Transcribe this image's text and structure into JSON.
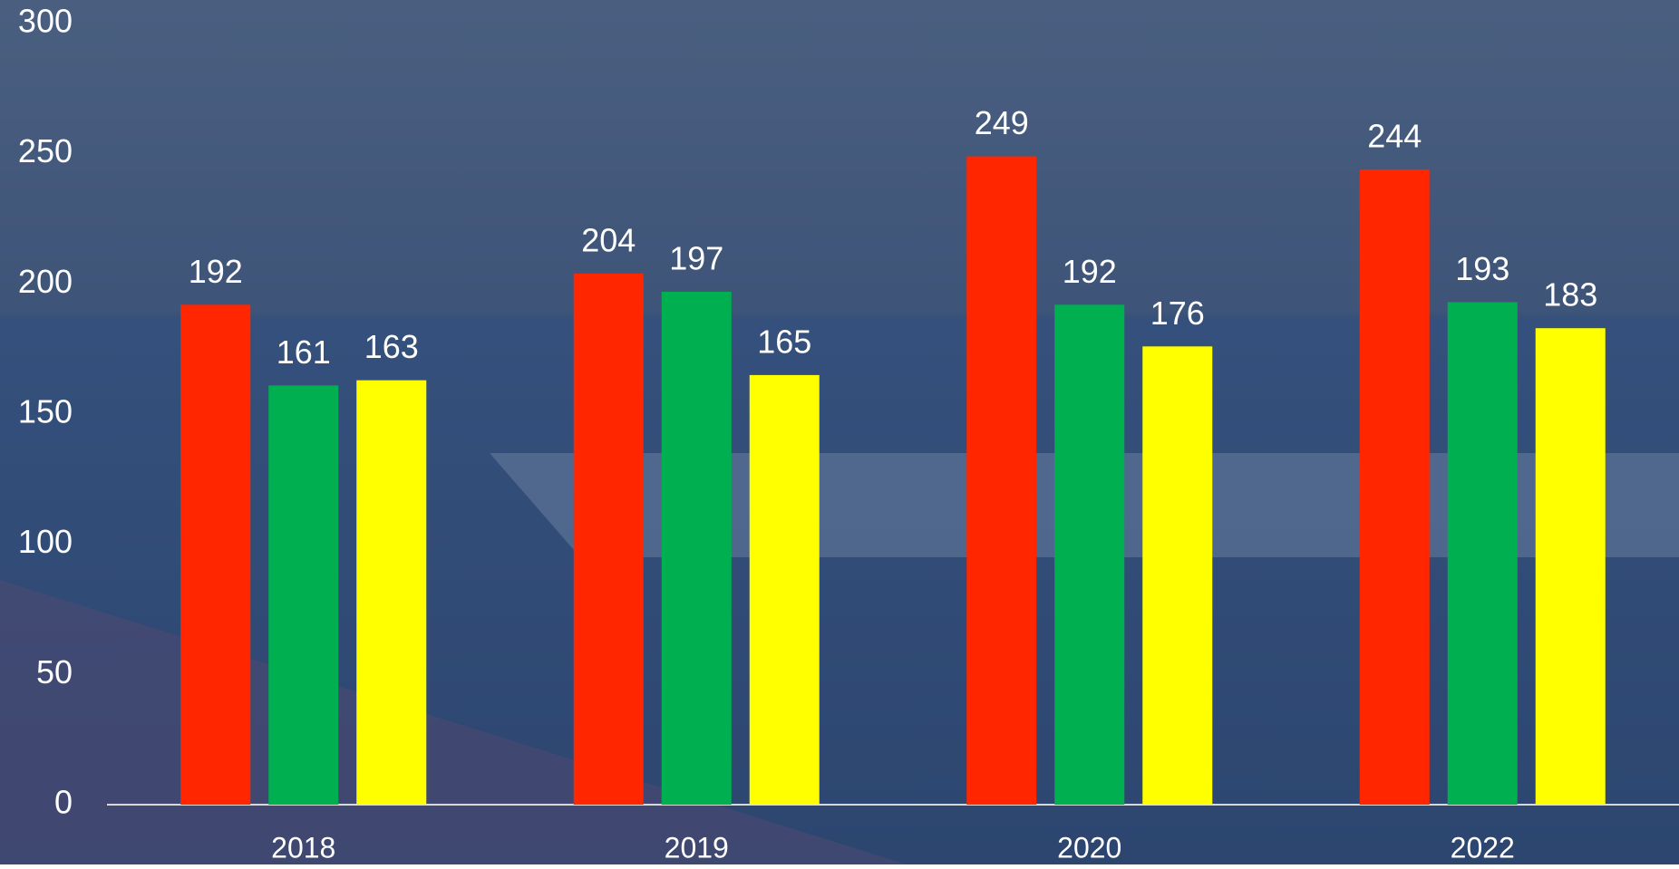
{
  "chart_data": {
    "type": "bar",
    "categories": [
      "2018",
      "2019",
      "2020",
      "2022"
    ],
    "series": [
      {
        "color": "#ff2600",
        "values": [
          192,
          204,
          249,
          244
        ]
      },
      {
        "color": "#00b050",
        "values": [
          161,
          197,
          192,
          193
        ]
      },
      {
        "color": "#ffff00",
        "values": [
          163,
          165,
          176,
          183
        ]
      }
    ],
    "ylim": [
      0,
      300
    ],
    "yticks": [
      0,
      50,
      100,
      150,
      200,
      250,
      300
    ],
    "grid": false
  }
}
